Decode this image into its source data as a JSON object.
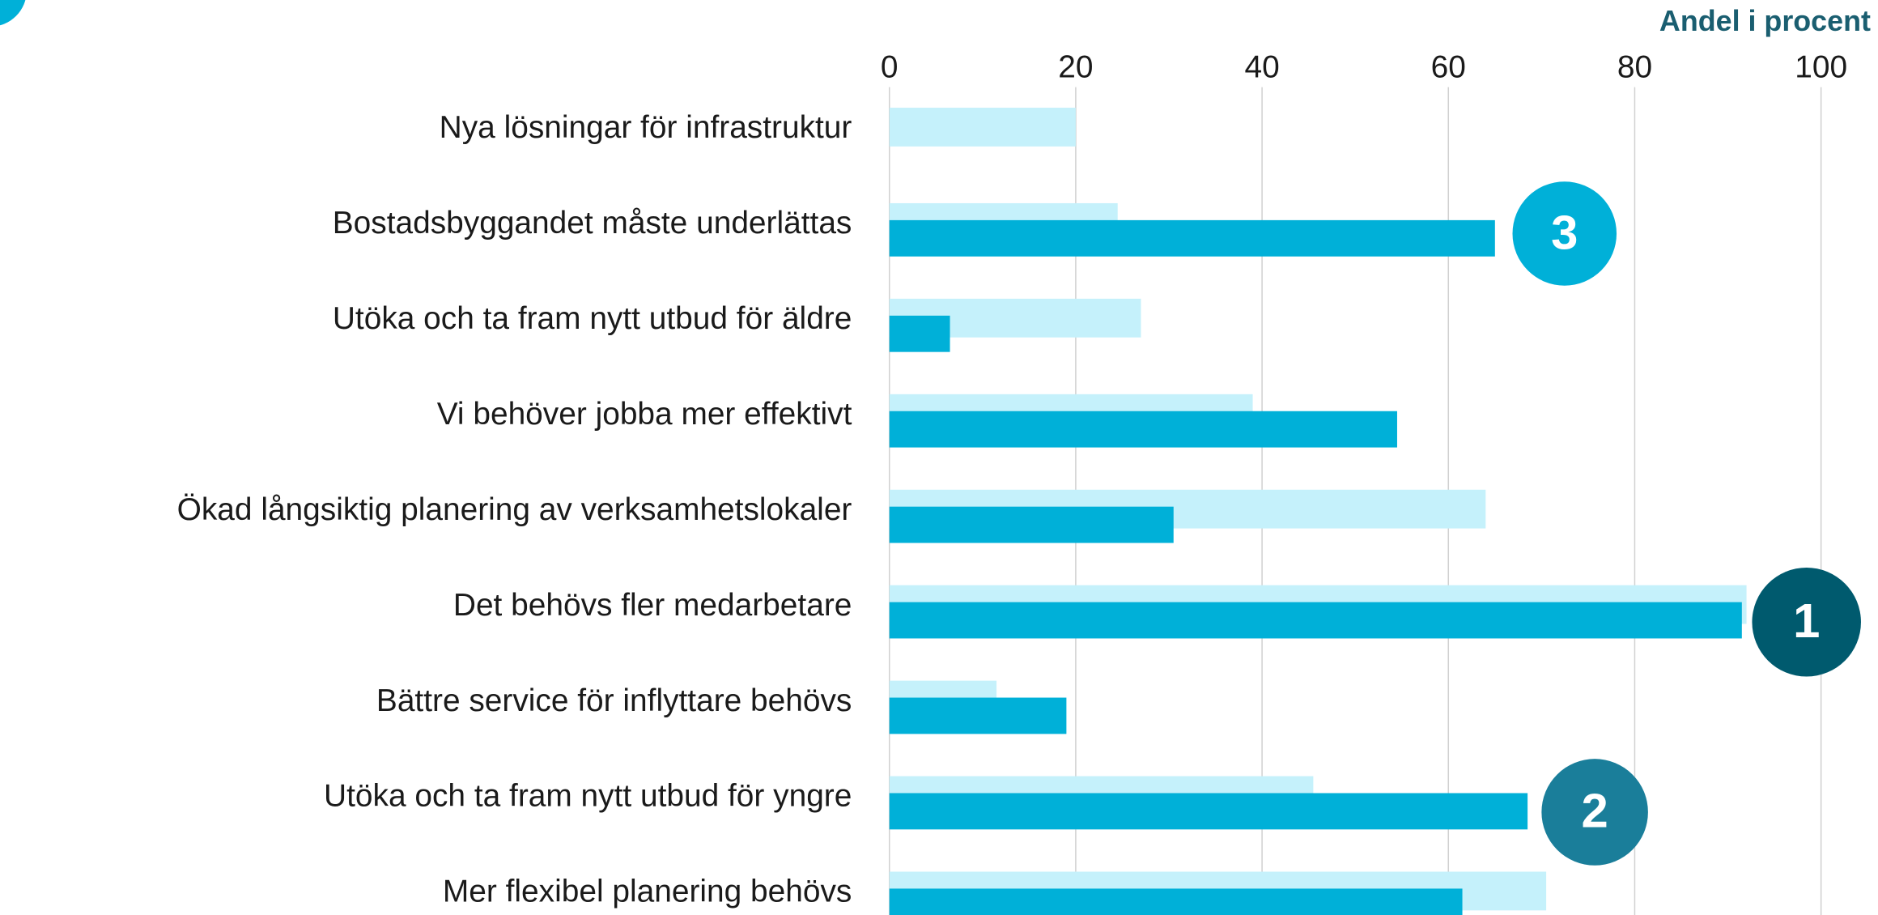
{
  "chart_data": {
    "type": "bar",
    "orientation": "horizontal",
    "x_axis_label": "Andel i procent",
    "categories": [
      "Nya lösningar för infrastruktur",
      "Bostadsbyggandet måste underlättas",
      "Utöka och ta fram nytt utbud för äldre",
      "Vi behöver jobba mer effektivt",
      "Ökad långsiktig planering av verksamhetslokaler",
      "Det behövs fler medarbetare",
      "Bättre service för inflyttare behövs",
      "Utöka och ta fram nytt utbud för yngre",
      "Mer flexibel planering behövs"
    ],
    "series": [
      {
        "color": "#c5f1fb",
        "values": [
          20,
          24.5,
          27,
          39,
          64,
          92,
          11.5,
          45.5,
          70.5
        ]
      },
      {
        "color": "#00b0d8",
        "values": [
          null,
          65,
          6.5,
          54.5,
          30.5,
          91.5,
          19,
          68.5,
          61.5
        ]
      }
    ],
    "xlim": [
      0,
      100
    ],
    "xticks": [
      0,
      20,
      40,
      60,
      80,
      100
    ],
    "grid": true,
    "annotations": [
      {
        "text": "3",
        "color": "#00b0d8"
      },
      {
        "text": "1",
        "color": "#005a6e"
      },
      {
        "text": "2",
        "color": "#1a7e9a"
      }
    ]
  }
}
